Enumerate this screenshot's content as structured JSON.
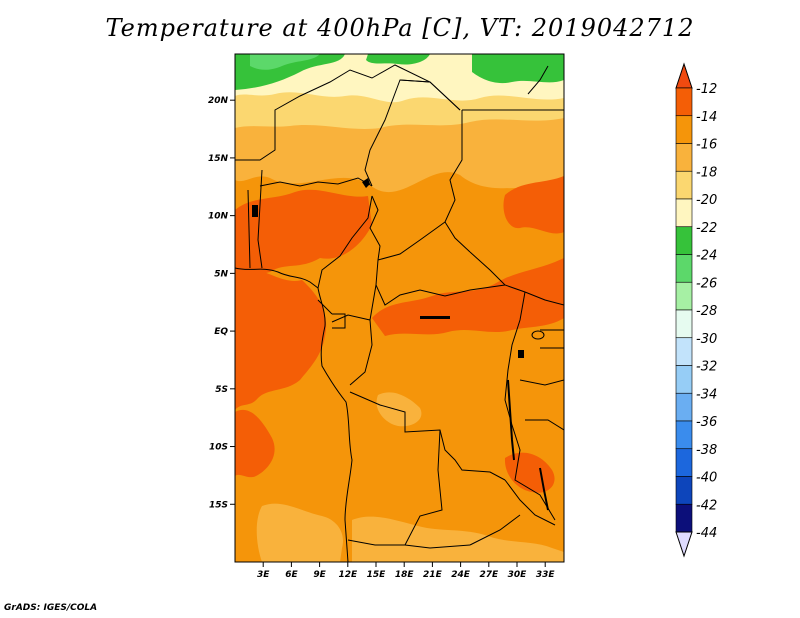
{
  "title": "Temperature at 400hPa [C], VT: 2019042712",
  "credit": "GrADS: IGES/COLA",
  "map": {
    "region": "Central Africa",
    "lat_range": [
      -20,
      24
    ],
    "lon_range": [
      0,
      35
    ],
    "lat_ticks": [
      {
        "value": 20,
        "label": "20N"
      },
      {
        "value": 15,
        "label": "15N"
      },
      {
        "value": 10,
        "label": "10N"
      },
      {
        "value": 5,
        "label": "5N"
      },
      {
        "value": 0,
        "label": "EQ"
      },
      {
        "value": -5,
        "label": "5S"
      },
      {
        "value": -10,
        "label": "10S"
      },
      {
        "value": -15,
        "label": "15S"
      }
    ],
    "lon_ticks": [
      {
        "value": 3,
        "label": "3E"
      },
      {
        "value": 6,
        "label": "6E"
      },
      {
        "value": 9,
        "label": "9E"
      },
      {
        "value": 12,
        "label": "12E"
      },
      {
        "value": 15,
        "label": "15E"
      },
      {
        "value": 18,
        "label": "18E"
      },
      {
        "value": 21,
        "label": "21E"
      },
      {
        "value": 24,
        "label": "24E"
      },
      {
        "value": 27,
        "label": "27E"
      },
      {
        "value": 30,
        "label": "30E"
      },
      {
        "value": 33,
        "label": "33E"
      }
    ]
  },
  "colorbar": {
    "levels": [
      "-12",
      "-14",
      "-16",
      "-18",
      "-20",
      "-22",
      "-24",
      "-26",
      "-28",
      "-30",
      "-32",
      "-34",
      "-36",
      "-38",
      "-40",
      "-42",
      "-44"
    ],
    "colors": [
      "#f04a10",
      "#f45e06",
      "#f5950a",
      "#f9b23c",
      "#fbd770",
      "#fff6c0",
      "#36c23a",
      "#5cd86a",
      "#a6f0a4",
      "#e6fbf0",
      "#c2e3fb",
      "#96cdf6",
      "#6aaef2",
      "#3a8ced",
      "#1c67dd",
      "#0d45bb",
      "#0c0f7a",
      "#dfdcff"
    ]
  }
}
